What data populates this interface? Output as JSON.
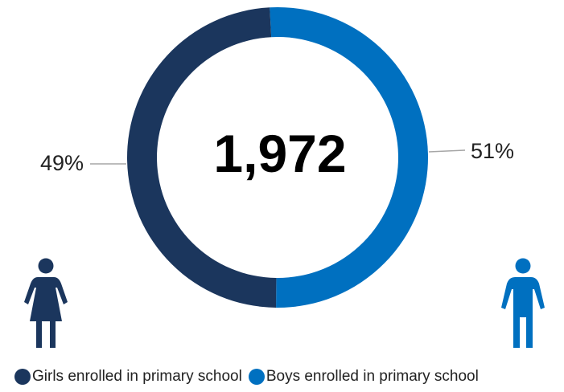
{
  "chart_data": {
    "type": "pie",
    "variant": "donut",
    "center_label": "1,972",
    "series": [
      {
        "name": "Girls enrolled in primary school",
        "value": 49,
        "label": "49%",
        "color": "#1b365d",
        "icon": "girl-icon"
      },
      {
        "name": "Boys enrolled in primary school",
        "value": 51,
        "label": "51%",
        "color": "#0070c0",
        "icon": "boy-icon"
      }
    ],
    "legend_position": "bottom"
  }
}
